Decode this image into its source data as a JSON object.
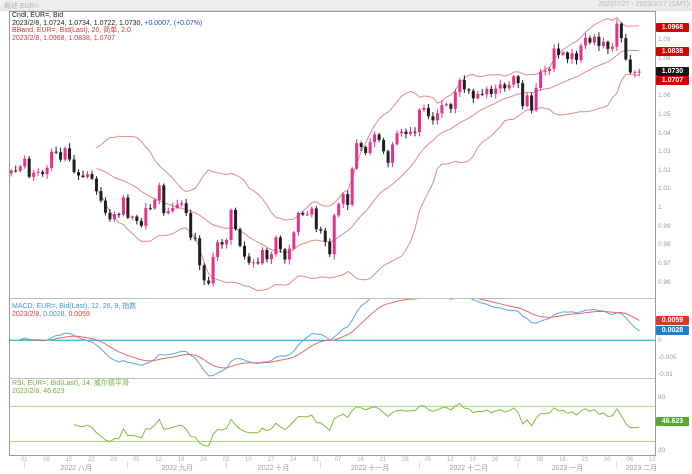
{
  "window": {
    "header_left": "概述 EUR=",
    "header_right": "2022/7/27 - 2023/2/17 (GMT)"
  },
  "legends": {
    "price": {
      "line1": "Cndl, EUR=, Bid",
      "line2_values": "2023/2/8, 1.0724, 1.0734, 1.0722, 1.0730,",
      "line2_change": "+0.0007, (+0.07%)",
      "line3": "BBand, EUR=, Bid(Last), 20, 简单, 2.0",
      "line4": "2023/2/8, 1.0968, 1.0838, 1.0707"
    },
    "macd": {
      "line1": "MACD, EUR=, Bid(Last), 12, 26, 9, 指数",
      "line2_date": "2023/2/8,",
      "line2_macd": "0.0028,",
      "line2_signal": "0.0059"
    },
    "rsi": {
      "line1": "RSI, EUR=, Bid(Last), 14, 威尔德平滑",
      "line2": "2023/2/8, 46.623"
    }
  },
  "axis": {
    "price_ticks": [
      {
        "v": 1.09,
        "label": "1.09"
      },
      {
        "v": 1.08,
        "label": "1.08"
      },
      {
        "v": 1.06,
        "label": "1.06"
      },
      {
        "v": 1.05,
        "label": "1.05"
      },
      {
        "v": 1.04,
        "label": "1.04"
      },
      {
        "v": 1.03,
        "label": "1.03"
      },
      {
        "v": 1.02,
        "label": "1.02"
      },
      {
        "v": 1.01,
        "label": "1.01"
      },
      {
        "v": 1.0,
        "label": "1"
      },
      {
        "v": 0.99,
        "label": "0.99"
      },
      {
        "v": 0.98,
        "label": "0.98"
      },
      {
        "v": 0.97,
        "label": "0.97"
      },
      {
        "v": 0.96,
        "label": "0.96"
      }
    ],
    "macd_ticks": [
      {
        "v": 0.005,
        "label": "0.005"
      },
      {
        "v": 0,
        "label": "0"
      },
      {
        "v": -0.005,
        "label": "-0.005"
      },
      {
        "v": -0.01,
        "label": "-0.01"
      }
    ],
    "rsi_ticks": [
      {
        "v": 80,
        "label": "80"
      },
      {
        "v": 20,
        "label": "20"
      }
    ]
  },
  "badges": {
    "price": [
      {
        "label": "1.0968",
        "v": 1.0968,
        "color": "#d40000",
        "nudge": 0
      },
      {
        "label": "1.0838",
        "v": 1.0838,
        "color": "#d40000",
        "nudge": 0
      },
      {
        "label": "1.0730",
        "v": 1.073,
        "color": "#141414",
        "nudge": 0
      },
      {
        "label": "1.0707",
        "v": 1.0707,
        "color": "#d40000",
        "nudge": 5
      }
    ],
    "macd": [
      {
        "label": "0.0059",
        "v": 0.0059,
        "color": "#d43a2a",
        "nudge": 0
      },
      {
        "label": "0.0028",
        "v": 0.0028,
        "color": "#1c7ed0",
        "nudge": 0
      }
    ],
    "rsi": [
      {
        "label": "46.623",
        "v": 46.623,
        "color": "#56a836",
        "nudge": -5
      }
    ]
  },
  "x_axis": {
    "day_labels": [
      "01",
      "08",
      "15",
      "22",
      "29",
      "05",
      "12",
      "19",
      "26",
      "03",
      "10",
      "17",
      "24",
      "31",
      "07",
      "14",
      "21",
      "28",
      "05",
      "12",
      "19",
      "26",
      "02",
      "09",
      "16",
      "23",
      "30",
      "06",
      "13"
    ],
    "day_indices": [
      3,
      8,
      13,
      18,
      23,
      28,
      33,
      38,
      43,
      48,
      53,
      58,
      63,
      68,
      73,
      78,
      83,
      88,
      93,
      98,
      103,
      108,
      113,
      118,
      123,
      128,
      133,
      138,
      143
    ],
    "month_labels": [
      "2022 八月",
      "2022 九月",
      "2022 十月",
      "2022 十一月",
      "2022 十二月",
      "2023 一月",
      "2023 二月"
    ],
    "month_center_indices": [
      14.5,
      37,
      58.5,
      80,
      102,
      124,
      140.5
    ],
    "separator_indices": [
      3,
      26,
      48,
      69,
      91,
      113,
      135
    ],
    "separator_glyph": "|"
  },
  "chart_data": {
    "type": "candlestick+indicators",
    "symbol": "EUR=",
    "field": "Bid",
    "interval": "daily",
    "visible_range": "2022/7/27 - 2023/2/17 (GMT)",
    "last_bar": {
      "date": "2023/2/8",
      "open": 1.0724,
      "high": 1.0734,
      "low": 1.0722,
      "close": 1.073,
      "change": "+0.0007",
      "change_pct": "+0.07%"
    },
    "closes": [
      1.0199,
      1.0197,
      1.0221,
      1.0262,
      1.0165,
      1.0187,
      1.0192,
      1.018,
      1.0213,
      1.03,
      1.0297,
      1.0257,
      1.0318,
      1.0258,
      1.019,
      1.0172,
      1.0164,
      1.0179,
      1.0155,
      1.0088,
      1.0037,
      0.9972,
      0.9937,
      0.9965,
      0.9962,
      1.0054,
      0.9945,
      0.9952,
      0.9928,
      0.9902,
      0.9997,
      0.9995,
      1.004,
      1.0119,
      0.997,
      0.9981,
      0.9998,
      1.0016,
      1.0023,
      0.997,
      0.9838,
      0.9835,
      0.969,
      0.9608,
      0.9593,
      0.9735,
      0.9814,
      0.9802,
      0.9826,
      0.9987,
      0.9884,
      0.9794,
      0.9737,
      0.9704,
      0.9706,
      0.9701,
      0.9772,
      0.9722,
      0.9749,
      0.984,
      0.9776,
      0.9721,
      0.9779,
      0.9867,
      0.9971,
      0.9962,
      0.9963,
      0.9995,
      0.9884,
      0.9876,
      0.9817,
      0.9749,
      0.9958,
      1.002,
      1.0072,
      1.0014,
      1.0209,
      1.0346,
      1.0325,
      1.0293,
      1.0351,
      1.0393,
      1.0363,
      1.0302,
      1.024,
      1.0339,
      1.0399,
      1.0408,
      1.0395,
      1.0407,
      1.0406,
      1.0525,
      1.0535,
      1.049,
      1.0468,
      1.0506,
      1.055,
      1.0555,
      1.053,
      1.062,
      1.0684,
      1.0634,
      1.0627,
      1.0586,
      1.061,
      1.0608,
      1.0637,
      1.061,
      1.0639,
      1.0661,
      1.064,
      1.066,
      1.0705,
      1.0668,
      1.0545,
      1.0602,
      1.0523,
      1.0642,
      1.073,
      1.0734,
      1.0745,
      1.0854,
      1.082,
      1.0832,
      1.0797,
      1.0828,
      1.0792,
      1.087,
      1.0911,
      1.0886,
      1.0917,
      1.0868,
      1.089,
      1.0852,
      1.0863,
      1.0987,
      1.091,
      1.0795,
      1.0725,
      1.0727,
      1.073
    ],
    "indicators": {
      "bollinger": {
        "period": 20,
        "method": "简单",
        "width": 2.0,
        "last": {
          "upper": 1.0968,
          "middle": 1.0838,
          "lower": 1.0707
        }
      },
      "macd": {
        "fast": 12,
        "slow": 26,
        "signal": 9,
        "method": "指数",
        "last": {
          "macd": 0.0028,
          "signal": 0.0059
        }
      },
      "rsi": {
        "period": 14,
        "method": "威尔德平滑",
        "levels": [
          70,
          30
        ],
        "last": 46.623
      }
    },
    "price_ylim": [
      0.9525,
      1.105
    ],
    "macd_ylim": [
      -0.0105,
      0.0115
    ],
    "rsi_ylim": [
      18,
      100
    ]
  },
  "colors": {
    "frame": "#9a9a9a",
    "separator": "#bdbdbd",
    "candle_up": "#e4318e",
    "candle_down": "#1f1f1f",
    "bband": "#dc8d8d",
    "macd_line": "#58a6e8",
    "macd_signal": "#e46a6a",
    "macd_zero": "#00a3e0",
    "rsi_line": "#7fbc42",
    "rsi_levels": "#aadb7a"
  }
}
